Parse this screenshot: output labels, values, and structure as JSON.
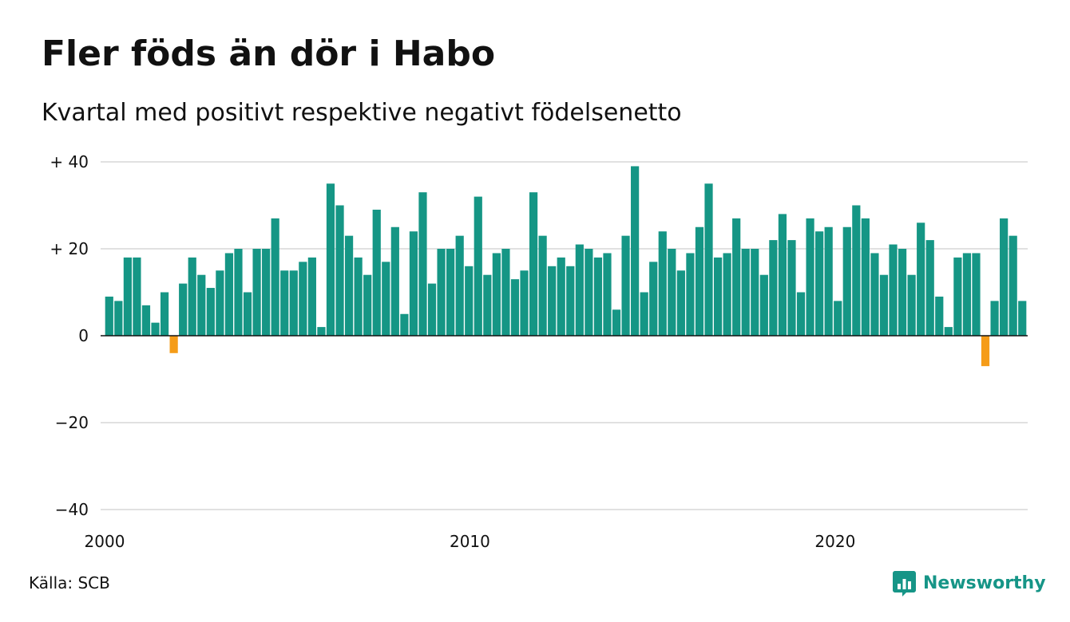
{
  "title": "Fler föds än dör i Habo",
  "subtitle": "Kvartal med positivt respektive negativt födelsenetto",
  "source": "Källa: SCB",
  "brand": {
    "name": "Newsworthy",
    "icon": "newsworthy-logo-icon",
    "color": "#169587"
  },
  "colors": {
    "positive": "#159685",
    "negative": "#f59c18",
    "grid": "#e1e1e1",
    "baseline": "#111111"
  },
  "chart_data": {
    "type": "bar",
    "title": "Fler föds än dör i Habo",
    "subtitle": "Kvartal med positivt respektive negativt födelsenetto",
    "x_start": 2000,
    "x_end": 2025.25,
    "bar_width_quarters": 1,
    "quarter_length": 0.25,
    "ylim": [
      -40,
      40
    ],
    "y_ticks": [
      40,
      20,
      0,
      -20,
      -40
    ],
    "y_tick_labels": [
      "+ 40",
      "+ 20",
      "0",
      "−20",
      "−40"
    ],
    "x_ticks": [
      2000,
      2010,
      2020
    ],
    "x_tick_labels": [
      "2000",
      "2010",
      "2020"
    ],
    "grid": true,
    "legend": "none",
    "series": [
      {
        "values": [
          9,
          8,
          18,
          18,
          7,
          3,
          10,
          -4,
          12,
          18,
          14,
          11,
          15,
          19,
          20,
          10,
          20,
          20,
          27,
          15,
          15,
          17,
          18,
          2,
          35,
          30,
          23,
          18,
          14,
          29,
          17,
          25,
          5,
          24,
          33,
          12,
          20,
          20,
          23,
          16,
          32,
          14,
          19,
          20,
          13,
          15,
          33,
          23,
          16,
          18,
          16,
          21,
          20,
          18,
          19,
          6,
          23,
          39,
          10,
          17,
          24,
          20,
          15,
          19,
          25,
          35,
          18,
          19,
          27,
          20,
          20,
          14,
          22,
          28,
          22,
          10,
          27,
          24,
          25,
          8,
          25,
          30,
          27,
          19,
          14,
          21,
          20,
          14,
          26,
          22,
          9,
          2,
          18,
          19,
          19,
          -7,
          8,
          27,
          23,
          8
        ]
      }
    ]
  }
}
